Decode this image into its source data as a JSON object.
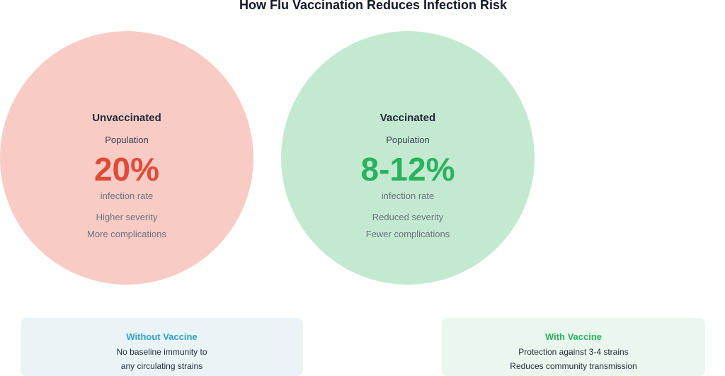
{
  "title": "How Flu Vaccination Reduces Infection Risk",
  "unvaccinated": {
    "heading": "Unvaccinated",
    "subheading": "Population",
    "rate": "20%",
    "rate_label": "infection rate",
    "line1": "Higher severity",
    "line2": "More complications",
    "color": "#e04a38",
    "fill": "#f8cbc5"
  },
  "vaccinated": {
    "heading": "Vaccinated",
    "subheading": "Population",
    "rate": "8-12%",
    "rate_label": "infection rate",
    "line1": "Reduced severity",
    "line2": "Fewer complications",
    "color": "#2ab25f",
    "fill": "#c4e9d1"
  },
  "without_vaccine": {
    "heading": "Without Vaccine",
    "line1": "No baseline immunity to",
    "line2": "any circulating strains"
  },
  "with_vaccine": {
    "heading": "With Vaccine",
    "line1": "Protection against 3-4 strains",
    "line2": "Reduces community transmission"
  }
}
